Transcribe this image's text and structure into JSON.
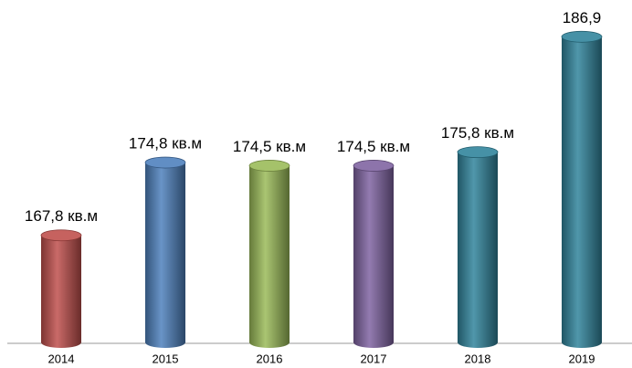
{
  "chart_data": {
    "type": "bar",
    "categories": [
      "2014",
      "2015",
      "2016",
      "2017",
      "2018",
      "2019"
    ],
    "values": [
      167.8,
      174.8,
      174.5,
      174.5,
      175.8,
      186.9
    ],
    "value_labels": [
      "167,8 кв.м",
      "174,8 кв.м",
      "174,5 кв.м",
      "174,5 кв.м",
      "175,8 кв.м",
      "186,9"
    ],
    "colors": [
      "#c0504d",
      "#4f81bd",
      "#9bbb59",
      "#8064a2",
      "#31859c",
      "#31859c"
    ],
    "ylim": [
      157.5,
      190
    ]
  }
}
